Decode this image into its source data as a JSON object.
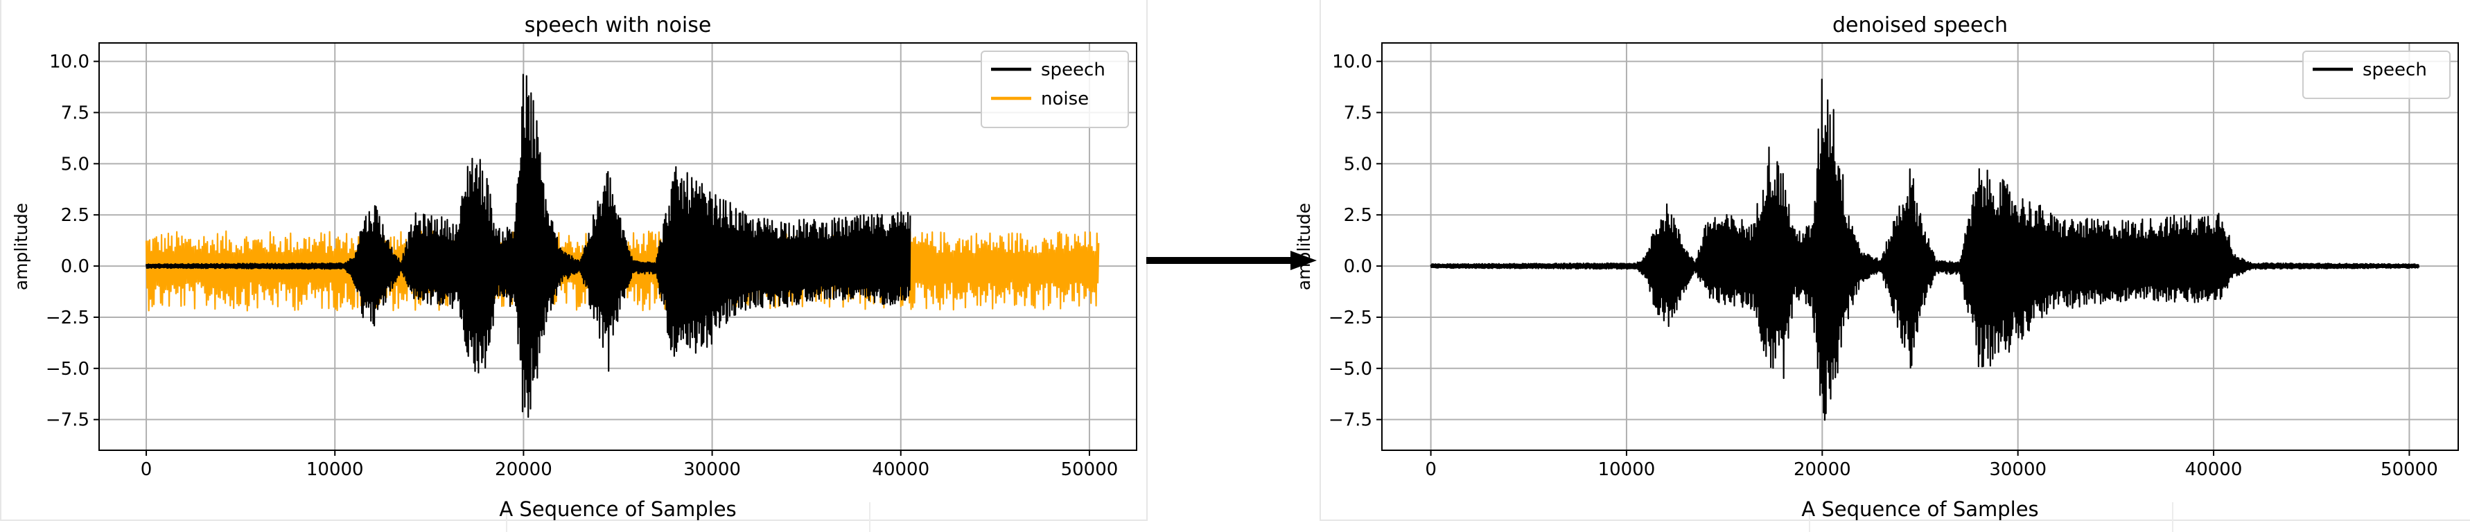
{
  "chart_data": [
    {
      "type": "line",
      "title": "speech with noise",
      "xlabel": "A Sequence of Samples",
      "ylabel": "amplitude",
      "xlim": [
        -2500,
        52500
      ],
      "ylim": [
        -9.0,
        10.9
      ],
      "x_ticks": [
        0,
        10000,
        20000,
        30000,
        40000,
        50000
      ],
      "y_ticks": [
        -7.5,
        -5.0,
        -2.5,
        0.0,
        2.5,
        5.0,
        7.5,
        10.0
      ],
      "x_tick_labels": [
        "0",
        "10000",
        "20000",
        "30000",
        "40000",
        "50000"
      ],
      "y_tick_labels": [
        "−7.5",
        "−5.0",
        "−2.5",
        "0.0",
        "2.5",
        "5.0",
        "7.5",
        "10.0"
      ],
      "grid": true,
      "legend_position": "top-right",
      "series": [
        {
          "name": "speech",
          "color": "#000000",
          "sample_count": 40500,
          "envelope": [
            [
              0,
              0.1,
              -0.1
            ],
            [
              10500,
              0.15,
              -0.15
            ],
            [
              11000,
              0.5,
              -0.8
            ],
            [
              11500,
              2.5,
              -2.6
            ],
            [
              12200,
              3.2,
              -3.0
            ],
            [
              12800,
              1.4,
              -1.6
            ],
            [
              13500,
              0.2,
              -0.3
            ],
            [
              14200,
              2.6,
              -1.7
            ],
            [
              15500,
              2.5,
              -2.0
            ],
            [
              16500,
              2.1,
              -2.2
            ],
            [
              17200,
              6.2,
              -5.0
            ],
            [
              18000,
              4.8,
              -5.7
            ],
            [
              18600,
              1.8,
              -1.5
            ],
            [
              19500,
              2.1,
              -2.3
            ],
            [
              20000,
              9.9,
              -7.9
            ],
            [
              20500,
              8.8,
              -7.0
            ],
            [
              21200,
              3.5,
              -3.0
            ],
            [
              22000,
              0.8,
              -0.8
            ],
            [
              23000,
              0.3,
              -0.3
            ],
            [
              24500,
              5.0,
              -5.2
            ],
            [
              25100,
              2.5,
              -2.3
            ],
            [
              25800,
              0.3,
              -0.4
            ],
            [
              27000,
              0.2,
              -0.4
            ],
            [
              28000,
              4.9,
              -5.0
            ],
            [
              29000,
              4.4,
              -4.8
            ],
            [
              30000,
              3.6,
              -3.8
            ],
            [
              31000,
              3.1,
              -2.7
            ],
            [
              32000,
              2.4,
              -2.1
            ],
            [
              34000,
              2.3,
              -2.0
            ],
            [
              36000,
              2.3,
              -1.6
            ],
            [
              38000,
              2.5,
              -1.8
            ],
            [
              39500,
              2.6,
              -1.9
            ],
            [
              40500,
              3.0,
              -1.6
            ]
          ]
        },
        {
          "name": "noise",
          "color": "#ffa500",
          "sample_count": 50500,
          "amplitude": [
            -2.3,
            1.8
          ]
        }
      ]
    },
    {
      "type": "line",
      "title": "denoised speech",
      "xlabel": "A Sequence of Samples",
      "ylabel": "amplitude",
      "xlim": [
        -2500,
        52500
      ],
      "ylim": [
        -9.0,
        10.9
      ],
      "x_ticks": [
        0,
        10000,
        20000,
        30000,
        40000,
        50000
      ],
      "y_ticks": [
        -7.5,
        -5.0,
        -2.5,
        0.0,
        2.5,
        5.0,
        7.5,
        10.0
      ],
      "x_tick_labels": [
        "0",
        "10000",
        "20000",
        "30000",
        "40000",
        "50000"
      ],
      "y_tick_labels": [
        "−7.5",
        "−5.0",
        "−2.5",
        "0.0",
        "2.5",
        "5.0",
        "7.5",
        "10.0"
      ],
      "grid": true,
      "legend_position": "top-right",
      "series": [
        {
          "name": "speech",
          "color": "#000000",
          "sample_count": 50500,
          "envelope": [
            [
              0,
              0.1,
              -0.1
            ],
            [
              10500,
              0.15,
              -0.15
            ],
            [
              11000,
              0.5,
              -0.8
            ],
            [
              11500,
              2.5,
              -2.6
            ],
            [
              12200,
              3.2,
              -3.0
            ],
            [
              12800,
              1.4,
              -1.6
            ],
            [
              13500,
              0.2,
              -0.3
            ],
            [
              14200,
              2.6,
              -1.7
            ],
            [
              15500,
              2.5,
              -2.0
            ],
            [
              16500,
              2.1,
              -2.2
            ],
            [
              17200,
              6.2,
              -5.0
            ],
            [
              18000,
              4.8,
              -5.7
            ],
            [
              18600,
              1.8,
              -1.5
            ],
            [
              19500,
              2.1,
              -2.3
            ],
            [
              20000,
              9.9,
              -7.9
            ],
            [
              20500,
              8.8,
              -7.0
            ],
            [
              21200,
              3.5,
              -3.0
            ],
            [
              22000,
              0.8,
              -0.8
            ],
            [
              23000,
              0.3,
              -0.3
            ],
            [
              24500,
              5.0,
              -5.2
            ],
            [
              25100,
              2.5,
              -2.3
            ],
            [
              25800,
              0.3,
              -0.4
            ],
            [
              27000,
              0.2,
              -0.4
            ],
            [
              28000,
              4.9,
              -5.0
            ],
            [
              29000,
              4.4,
              -4.8
            ],
            [
              30000,
              3.6,
              -3.8
            ],
            [
              31000,
              3.1,
              -2.7
            ],
            [
              32000,
              2.4,
              -2.1
            ],
            [
              34000,
              2.3,
              -2.0
            ],
            [
              36000,
              2.3,
              -1.6
            ],
            [
              38000,
              2.5,
              -1.8
            ],
            [
              39500,
              2.6,
              -1.9
            ],
            [
              40500,
              3.0,
              -1.6
            ],
            [
              41000,
              0.6,
              -0.6
            ],
            [
              42000,
              0.15,
              -0.15
            ],
            [
              50500,
              0.1,
              -0.1
            ]
          ]
        }
      ]
    }
  ],
  "arrow": {
    "glyph": "right-arrow",
    "color": "#000000"
  }
}
